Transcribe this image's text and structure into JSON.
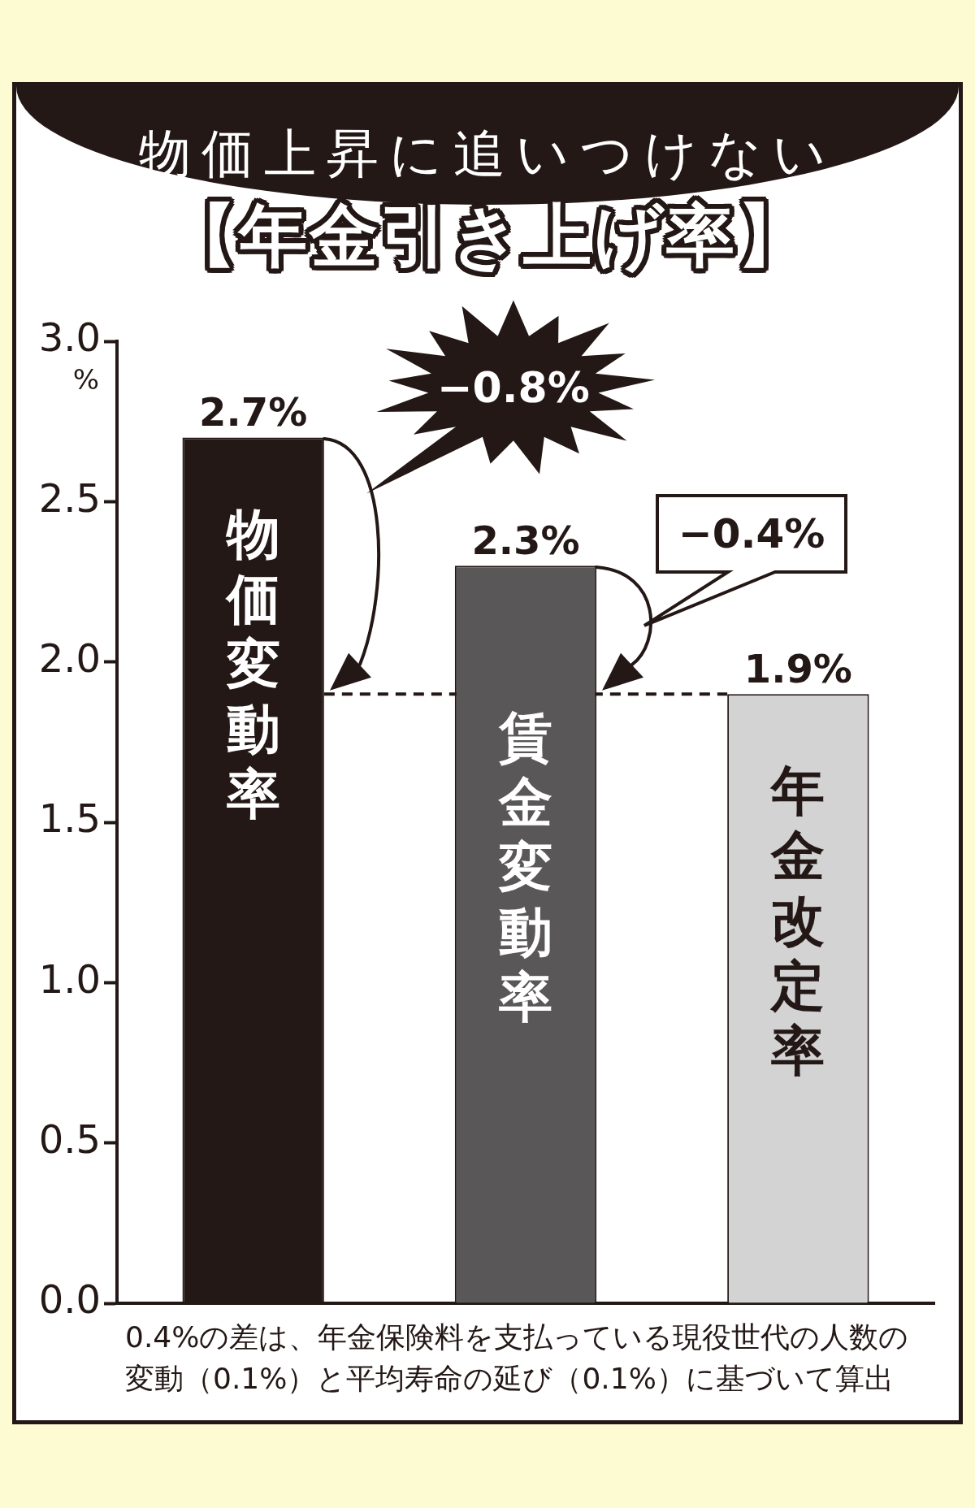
{
  "chart_data": {
    "type": "bar",
    "title": "物価上昇に追いつけない",
    "subtitle": "【年金引き上げ率】",
    "ylabel": "%",
    "categories": [
      "物価変動率",
      "賃金変動率",
      "年金改定率"
    ],
    "values": [
      2.7,
      2.3,
      1.9
    ],
    "colors": [
      "#231815",
      "#595757",
      "#d3d3d4"
    ],
    "value_labels": [
      "2.7%",
      "2.3%",
      "1.9%"
    ],
    "ylim": [
      0,
      3
    ],
    "yticks": [
      {
        "value": 0,
        "label": "0.0"
      },
      {
        "value": 0.5,
        "label": "0.5"
      },
      {
        "value": 1,
        "label": "1.0"
      },
      {
        "value": 1.5,
        "label": "1.5"
      },
      {
        "value": 2,
        "label": "2.0"
      },
      {
        "value": 2.5,
        "label": "2.5"
      },
      {
        "value": 3,
        "label": "3.0"
      }
    ],
    "ref_lines": [
      {
        "axis": "y",
        "value": 1.9,
        "line_style": "dashed",
        "color": "#231815"
      }
    ],
    "annotations": [
      "−0.8%",
      "−0.4%",
      "0.4%の差は、年金保険料を支払っている現役世代の人数の変動（0.1%）と平均寿命の延び（0.1%）に基づいて算出"
    ]
  }
}
